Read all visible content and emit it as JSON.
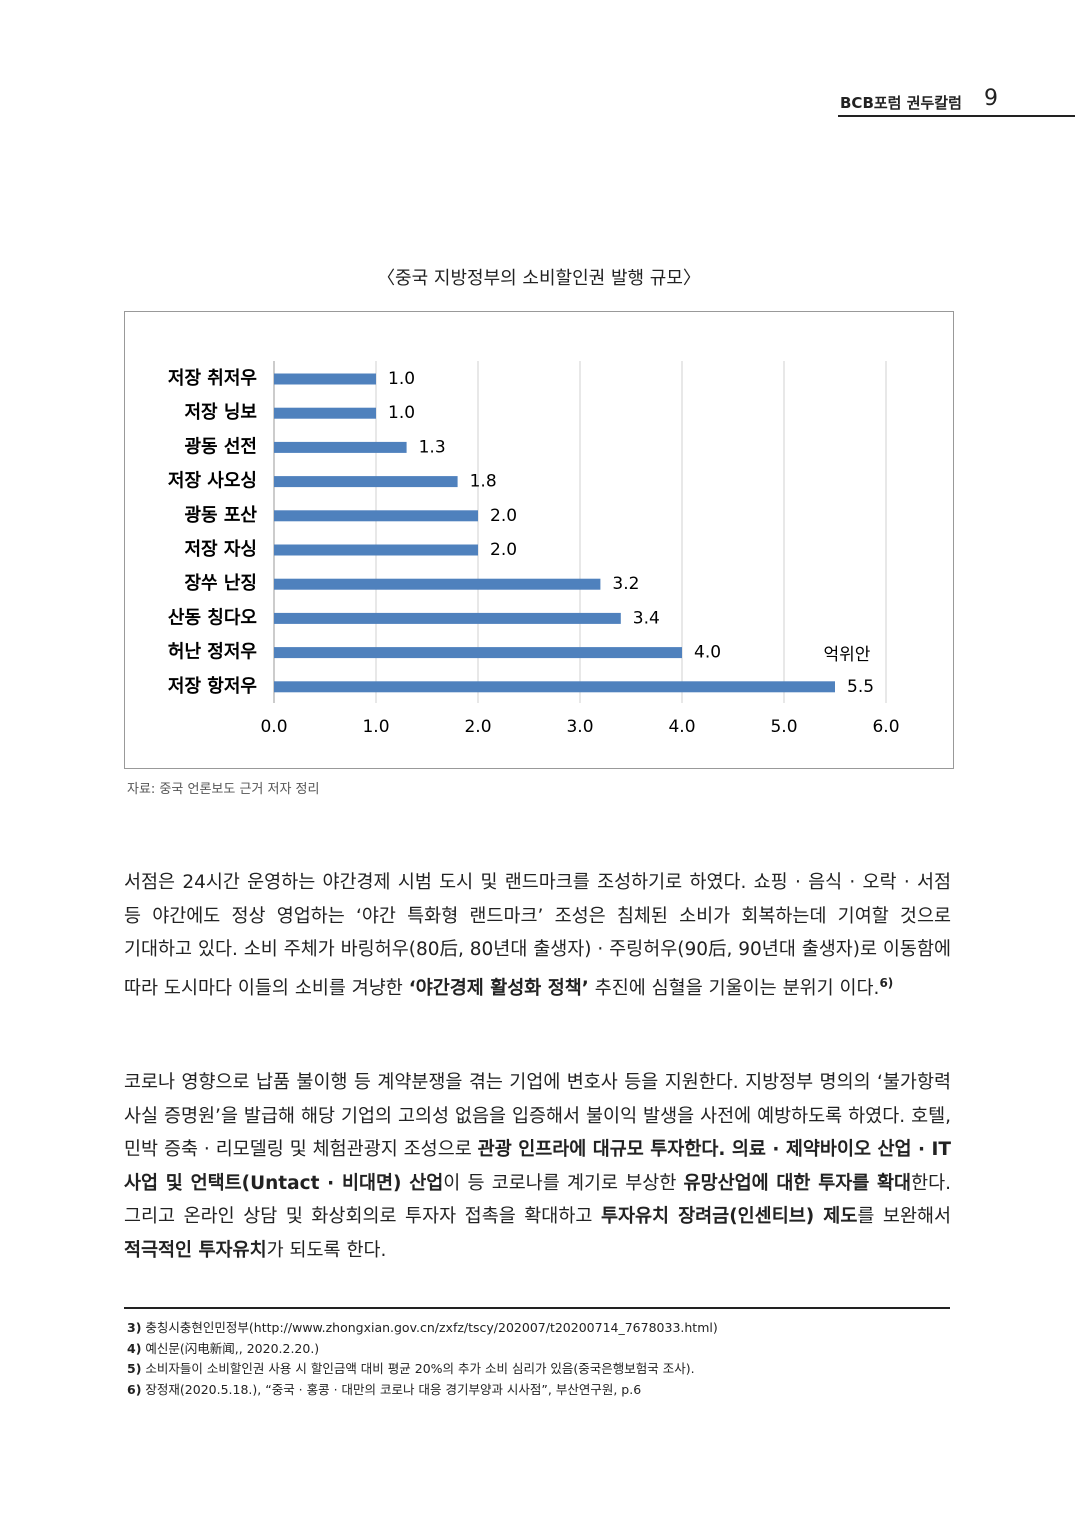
{
  "header": {
    "title": "BCB포럼 권두칼럼",
    "page": "9"
  },
  "chart_data": {
    "type": "bar",
    "orientation": "horizontal",
    "title": "〈중국 지방정부의 소비할인권 발행 규모〉",
    "unit_label": "억위안",
    "categories": [
      "저장 취저우",
      "저장 닝보",
      "광동 선전",
      "저장 사오싱",
      "광동 포산",
      "저장 자싱",
      "장쑤 난징",
      "산동 칭다오",
      "허난 정저우",
      "저장 항저우"
    ],
    "values": [
      1.0,
      1.0,
      1.3,
      1.8,
      2.0,
      2.0,
      3.2,
      3.4,
      4.0,
      5.5
    ],
    "value_labels": [
      "1.0",
      "1.0",
      "1.3",
      "1.8",
      "2.0",
      "2.0",
      "3.2",
      "3.4",
      "4.0",
      "5.5"
    ],
    "color": "#4f81bd",
    "xlim": [
      0,
      6
    ],
    "xticks": [
      {
        "value": 0,
        "label": "0.0"
      },
      {
        "value": 1,
        "label": "1.0"
      },
      {
        "value": 2,
        "label": "2.0"
      },
      {
        "value": 3,
        "label": "3.0"
      },
      {
        "value": 4,
        "label": "4.0"
      },
      {
        "value": 5,
        "label": "5.0"
      },
      {
        "value": 6,
        "label": "6.0"
      }
    ],
    "grid": true
  },
  "source": "자료: 중국 언론보도 근거 저자 정리",
  "paragraphs": [
    {
      "runs": [
        {
          "text": "서점은 24시간 운영하는 야간경제 시범 도시 및 랜드마크를 조성하기로 하였다. 쇼핑 · 음식 · 오락 · 서점 등 야간에도 정상 영업하는 ‘야간 특화형 랜드마크’ 조성은 침체된 소비가 회복하는데 기여할 것으로 기대하고 있다. 소비 주체가 바링허우(80后, 80년대 출생자) · 주링허우(90后, 90년대 출생자)로 이동함에 따라 도시마다 이들의 소비를 겨냥한 "
        },
        {
          "text": "‘야간경제 활성화 정책’",
          "bold": true
        },
        {
          "text": " 추진에 심혈을 기울이는 분위기 이다."
        },
        {
          "text": "6)",
          "sup": true
        }
      ]
    },
    {
      "runs": [
        {
          "text": "코로나 영향으로 납품 불이행 등 계약분쟁을 겪는 기업에 변호사 등을 지원한다. 지방정부 명의의 ‘불가항력 사실 증명원’을 발급해 해당 기업의 고의성 없음을 입증해서 불이익 발생을 사전에 예방하도록 하였다. 호텔, 민박 증축 · 리모델링 및 체험관광지 조성으로 "
        },
        {
          "text": "관광 인프라에 대규모 투자한다. 의료 · 제약바이오 산업 · IT 사업 및 언택트(Untact · 비대면) 산업",
          "bold": true
        },
        {
          "text": "이 등 코로나를 계기로 부상한 "
        },
        {
          "text": "유망산업에 대한 투자를 확대",
          "bold": true
        },
        {
          "text": "한다. 그리고 온라인 상담 및 화상회의로 투자자 접촉을 확대하고 "
        },
        {
          "text": "투자유치 장려금(인센티브) 제도",
          "bold": true
        },
        {
          "text": "를 보완해서 "
        },
        {
          "text": "적극적인 투자유치",
          "bold": true
        },
        {
          "text": "가 되도록 한다."
        }
      ]
    }
  ],
  "footnotes": [
    {
      "number": "3)",
      "text": "충칭시충현인민정부(http://www.zhongxian.gov.cn/zxfz/tscy/202007/t20200714_7678033.html)"
    },
    {
      "number": "4)",
      "text": "예신문(闪电新闻,, 2020.2.20.)"
    },
    {
      "number": "5)",
      "text": "소비자들이 소비할인권 사용 시 할인금액 대비 평균 20%의 추가 소비 심리가 있음(중국은행보험국 조사)."
    },
    {
      "number": "6)",
      "text": "장정재(2020.5.18.), “중국 · 홍콩 · 대만의 코로나 대응 경기부양과 시사점”, 부산연구원, p.6"
    }
  ]
}
